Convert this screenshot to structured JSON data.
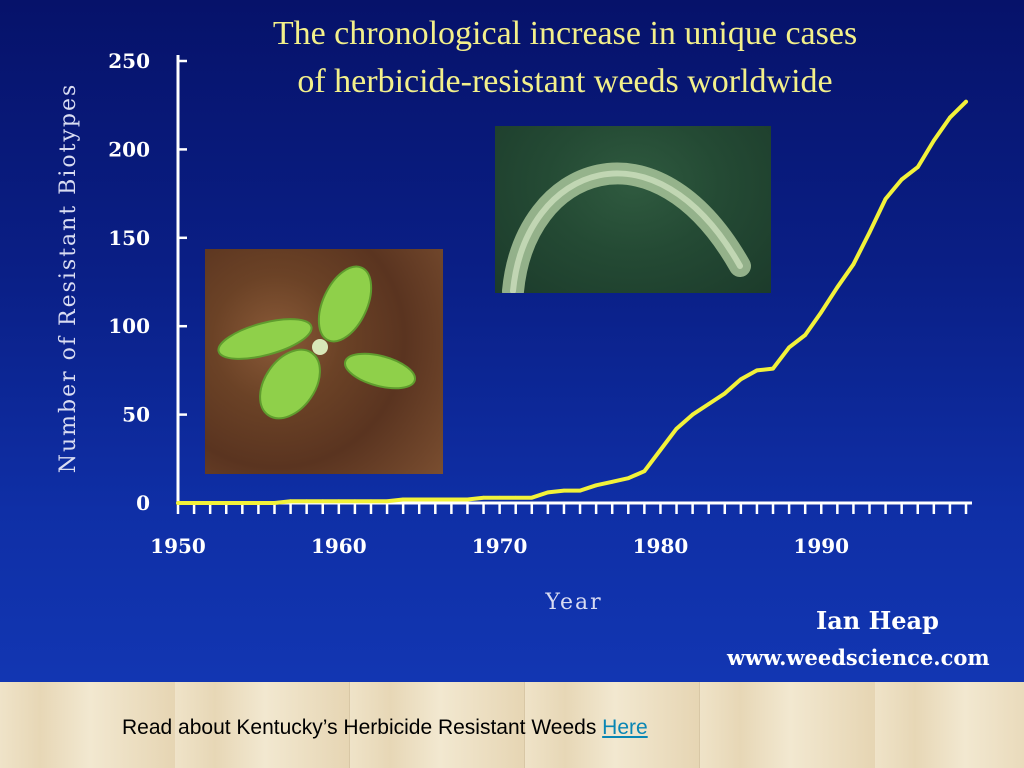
{
  "slide": {
    "title_line1": "The chronological increase in unique cases",
    "title_line2": "of herbicide-resistant weeds worldwide",
    "author": "Ian Heap",
    "website": "www.weedscience.com"
  },
  "footer": {
    "text": "Read about Kentucky’s Herbicide Resistant Weeds ",
    "link_label": "Here"
  },
  "colors": {
    "background": "#0b2090",
    "line": "#f2f23a",
    "title": "#f3f08a",
    "link": "#0a86b4"
  },
  "chart_data": {
    "type": "line",
    "title": "The chronological increase in unique cases of herbicide-resistant weeds worldwide",
    "xlabel": "Year",
    "ylabel": "Number of Resistant Biotypes",
    "xlim": [
      1950,
      1999
    ],
    "ylim": [
      0,
      250
    ],
    "x_ticks": [
      1950,
      1960,
      1970,
      1980,
      1990
    ],
    "y_ticks": [
      0,
      50,
      100,
      150,
      200,
      250
    ],
    "grid": false,
    "series": [
      {
        "x": [
          1950,
          1951,
          1952,
          1953,
          1954,
          1955,
          1956,
          1957,
          1958,
          1959,
          1960,
          1961,
          1962,
          1963,
          1964,
          1965,
          1966,
          1967,
          1968,
          1969,
          1970,
          1971,
          1972,
          1973,
          1974,
          1975,
          1976,
          1977,
          1978,
          1979,
          1980,
          1981,
          1982,
          1983,
          1984,
          1985,
          1986,
          1987,
          1988,
          1989,
          1990,
          1991,
          1992,
          1993,
          1994,
          1995,
          1996,
          1997,
          1998,
          1999
        ],
        "y": [
          0,
          0,
          0,
          0,
          0,
          0,
          0,
          1,
          1,
          1,
          1,
          1,
          1,
          1,
          2,
          2,
          2,
          2,
          2,
          3,
          3,
          3,
          3,
          6,
          7,
          7,
          10,
          12,
          14,
          18,
          30,
          42,
          50,
          56,
          62,
          70,
          75,
          76,
          88,
          95,
          108,
          122,
          135,
          153,
          172,
          183,
          190,
          205,
          218,
          227
        ]
      }
    ]
  }
}
